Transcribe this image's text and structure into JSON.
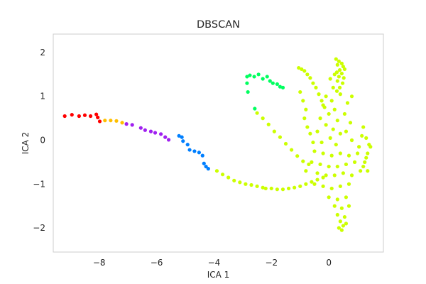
{
  "chart_data": {
    "type": "scatter",
    "title": "DBSCAN",
    "xlabel": "ICA 1",
    "ylabel": "ICA 2",
    "xlim": [
      -9.6,
      1.9
    ],
    "ylim": [
      -2.55,
      2.42
    ],
    "xticks": [
      -8,
      -6,
      -4,
      -2,
      0
    ],
    "xtick_labels": [
      "−8",
      "−6",
      "−4",
      "−2",
      "0"
    ],
    "yticks": [
      -2,
      -1,
      0,
      1,
      2
    ],
    "ytick_labels": [
      "−2",
      "−1",
      "0",
      "1",
      "2"
    ],
    "grid": false,
    "legend": "none",
    "series": [
      {
        "color": "#ff0000",
        "points": [
          [
            -9.2,
            0.55
          ],
          [
            -8.95,
            0.58
          ],
          [
            -8.7,
            0.55
          ],
          [
            -8.5,
            0.57
          ],
          [
            -8.3,
            0.55
          ],
          [
            -8.1,
            0.59
          ],
          [
            -8.05,
            0.52
          ],
          [
            -7.98,
            0.43
          ]
        ]
      },
      {
        "color": "#ffbf00",
        "points": [
          [
            -7.8,
            0.45
          ],
          [
            -7.6,
            0.45
          ],
          [
            -7.4,
            0.44
          ],
          [
            -7.2,
            0.4
          ]
        ]
      },
      {
        "color": "#a020f0",
        "points": [
          [
            -7.05,
            0.37
          ],
          [
            -6.85,
            0.35
          ],
          [
            -6.55,
            0.28
          ],
          [
            -6.4,
            0.23
          ],
          [
            -6.2,
            0.2
          ],
          [
            -6.05,
            0.17
          ],
          [
            -5.85,
            0.14
          ],
          [
            -5.7,
            0.07
          ],
          [
            -5.58,
            0.01
          ]
        ]
      },
      {
        "color": "#007fff",
        "points": [
          [
            -5.22,
            0.1
          ],
          [
            -5.12,
            0.07
          ],
          [
            -5.08,
            -0.02
          ],
          [
            -4.92,
            -0.1
          ],
          [
            -4.85,
            -0.22
          ],
          [
            -4.68,
            -0.25
          ],
          [
            -4.52,
            -0.28
          ],
          [
            -4.4,
            -0.35
          ],
          [
            -4.35,
            -0.53
          ],
          [
            -4.28,
            -0.6
          ],
          [
            -4.2,
            -0.65
          ]
        ]
      },
      {
        "color": "#00ff5f",
        "points": [
          [
            -2.85,
            1.45
          ],
          [
            -2.75,
            1.48
          ],
          [
            -2.6,
            1.45
          ],
          [
            -2.45,
            1.5
          ],
          [
            -2.3,
            1.4
          ],
          [
            -2.15,
            1.45
          ],
          [
            -2.05,
            1.35
          ],
          [
            -1.95,
            1.3
          ],
          [
            -1.8,
            1.28
          ],
          [
            -1.7,
            1.22
          ],
          [
            -1.6,
            1.2
          ],
          [
            -2.85,
            1.3
          ],
          [
            -2.82,
            1.1
          ],
          [
            -2.58,
            0.72
          ]
        ]
      },
      {
        "color": "#ccff00",
        "points": [
          [
            -3.9,
            -0.7
          ],
          [
            -3.7,
            -0.78
          ],
          [
            -3.5,
            -0.85
          ],
          [
            -3.3,
            -0.92
          ],
          [
            -3.1,
            -0.96
          ],
          [
            -2.9,
            -1.0
          ],
          [
            -2.7,
            -1.02
          ],
          [
            -2.5,
            -1.05
          ],
          [
            -2.3,
            -1.08
          ],
          [
            -2.2,
            -1.1
          ],
          [
            -2.0,
            -1.1
          ],
          [
            -1.8,
            -1.12
          ],
          [
            -1.6,
            -1.12
          ],
          [
            -1.4,
            -1.1
          ],
          [
            -1.2,
            -1.08
          ],
          [
            -1.0,
            -1.05
          ],
          [
            -0.8,
            -1.0
          ],
          [
            -0.6,
            -0.95
          ],
          [
            -0.4,
            -0.9
          ],
          [
            -0.2,
            -0.85
          ],
          [
            -2.5,
            0.62
          ],
          [
            -2.3,
            0.5
          ],
          [
            -2.1,
            0.36
          ],
          [
            -1.9,
            0.2
          ],
          [
            -1.7,
            0.07
          ],
          [
            -1.5,
            -0.08
          ],
          [
            -1.3,
            -0.22
          ],
          [
            -1.1,
            -0.36
          ],
          [
            -0.9,
            -0.48
          ],
          [
            -0.7,
            -0.55
          ],
          [
            -1.05,
            1.65
          ],
          [
            -0.95,
            1.62
          ],
          [
            -0.85,
            1.58
          ],
          [
            -0.75,
            1.5
          ],
          [
            -0.65,
            1.42
          ],
          [
            -0.55,
            1.3
          ],
          [
            -0.45,
            1.2
          ],
          [
            -0.35,
            1.05
          ],
          [
            -0.25,
            0.9
          ],
          [
            -0.15,
            0.75
          ],
          [
            -1.0,
            1.1
          ],
          [
            -0.9,
            0.9
          ],
          [
            -0.8,
            0.7
          ],
          [
            -0.85,
            0.5
          ],
          [
            -0.75,
            0.3
          ],
          [
            -0.65,
            0.15
          ],
          [
            -0.55,
            -0.05
          ],
          [
            0.25,
            1.85
          ],
          [
            0.35,
            1.8
          ],
          [
            0.45,
            1.75
          ],
          [
            0.3,
            1.72
          ],
          [
            0.5,
            1.68
          ],
          [
            0.38,
            1.6
          ],
          [
            0.55,
            1.62
          ],
          [
            0.28,
            1.55
          ],
          [
            0.45,
            1.52
          ],
          [
            0.35,
            1.45
          ],
          [
            0.52,
            1.42
          ],
          [
            0.3,
            1.35
          ],
          [
            0.48,
            1.3
          ],
          [
            0.38,
            1.2
          ],
          [
            0.28,
            1.12
          ],
          [
            0.4,
            1.05
          ],
          [
            0.15,
            1.2
          ],
          [
            0.05,
            1.4
          ],
          [
            0.2,
            1.5
          ],
          [
            -0.1,
            1.0
          ],
          [
            0.1,
            0.9
          ],
          [
            -0.2,
            0.8
          ],
          [
            0.2,
            0.7
          ],
          [
            0.0,
            0.6
          ],
          [
            -0.3,
            0.5
          ],
          [
            0.3,
            0.45
          ],
          [
            -0.1,
            0.35
          ],
          [
            0.15,
            0.25
          ],
          [
            -0.4,
            0.2
          ],
          [
            0.4,
            0.15
          ],
          [
            0.05,
            0.05
          ],
          [
            -0.25,
            -0.05
          ],
          [
            0.25,
            -0.1
          ],
          [
            -0.5,
            -0.25
          ],
          [
            -0.2,
            -0.3
          ],
          [
            0.1,
            -0.35
          ],
          [
            0.4,
            -0.3
          ],
          [
            0.7,
            -0.35
          ],
          [
            1.0,
            -0.3
          ],
          [
            1.3,
            -0.4
          ],
          [
            -0.6,
            -0.5
          ],
          [
            -0.3,
            -0.55
          ],
          [
            0.0,
            -0.6
          ],
          [
            0.3,
            -0.6
          ],
          [
            0.6,
            -0.55
          ],
          [
            0.9,
            -0.5
          ],
          [
            1.2,
            -0.6
          ],
          [
            -0.8,
            -0.7
          ],
          [
            -0.4,
            -0.75
          ],
          [
            -0.1,
            -0.8
          ],
          [
            0.2,
            -0.8
          ],
          [
            0.5,
            -0.75
          ],
          [
            0.8,
            -0.8
          ],
          [
            1.1,
            -0.7
          ],
          [
            -0.5,
            -1.0
          ],
          [
            -0.2,
            -1.05
          ],
          [
            0.1,
            -1.1
          ],
          [
            0.4,
            -1.05
          ],
          [
            0.7,
            -1.0
          ],
          [
            0.0,
            -1.3
          ],
          [
            0.3,
            -1.35
          ],
          [
            0.6,
            -1.3
          ],
          [
            0.2,
            -1.5
          ],
          [
            0.45,
            -1.55
          ],
          [
            0.7,
            -1.5
          ],
          [
            0.3,
            -1.7
          ],
          [
            0.55,
            -1.75
          ],
          [
            0.4,
            -1.85
          ],
          [
            0.5,
            -1.95
          ],
          [
            0.35,
            -2.0
          ],
          [
            0.45,
            -2.05
          ],
          [
            0.6,
            -1.9
          ],
          [
            1.2,
            0.3
          ],
          [
            1.3,
            0.05
          ],
          [
            1.4,
            -0.1
          ],
          [
            1.35,
            -0.3
          ],
          [
            1.25,
            -0.5
          ],
          [
            1.35,
            -0.7
          ],
          [
            1.45,
            -0.15
          ],
          [
            1.15,
            0.1
          ],
          [
            1.05,
            -0.15
          ],
          [
            0.8,
            0.0
          ],
          [
            0.6,
            0.2
          ],
          [
            0.75,
            0.4
          ],
          [
            0.55,
            0.6
          ],
          [
            0.65,
            0.85
          ],
          [
            0.8,
            1.0
          ]
        ]
      }
    ]
  }
}
